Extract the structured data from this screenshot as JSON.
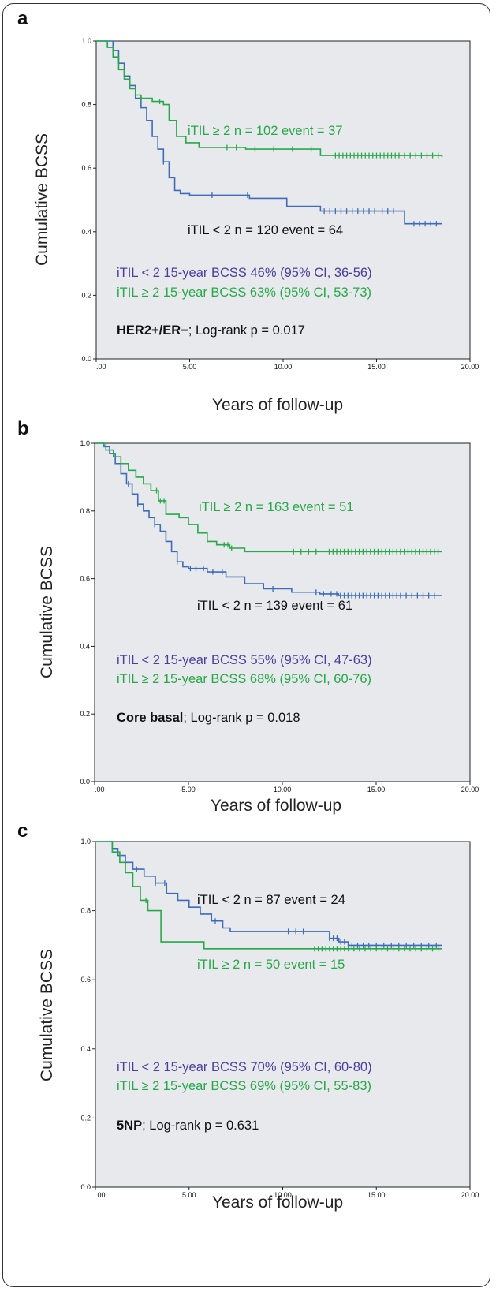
{
  "colors": {
    "green": "#27a84a",
    "blue": "#3d6db8",
    "purple": "#4a3f9e",
    "black": "#111111",
    "plot_bg": "#e8e9ec"
  },
  "chart_data": [
    {
      "type": "line",
      "panel_label": "a",
      "xlabel": "Years of follow-up",
      "ylabel": "Cumulative BCSS",
      "xlim": [
        0,
        20
      ],
      "ylim": [
        0,
        1
      ],
      "xticks": [
        ".00",
        "5.00",
        "10.00",
        "15.00",
        "20.00"
      ],
      "yticks": [
        "0.0",
        "0.2",
        "0.4",
        "0.6",
        "0.8",
        "1.0"
      ],
      "annotations": {
        "green_curve": "iTIL ≥ 2  n = 102 event = 37",
        "blue_curve": "iTIL < 2  n = 120 event = 64",
        "bcss_low": "iTIL < 2  15-year BCSS 46% (95% CI, 36-56)",
        "bcss_high": "iTIL ≥ 2  15-year BCSS 63% (95% CI, 53-73)",
        "subtype": "HER2+/ER−",
        "logrank": "; Log-rank p = 0.017"
      },
      "series": [
        {
          "name": "iTIL < 2",
          "color": "#3d6db8",
          "x": [
            0,
            0.6,
            0.9,
            1.2,
            1.5,
            1.8,
            2.1,
            2.4,
            2.7,
            3.0,
            3.3,
            3.6,
            3.9,
            4.2,
            4.5,
            5.0,
            6.0,
            8.2,
            10.2,
            12.0,
            14.5,
            16.5,
            18.5
          ],
          "y": [
            1.0,
            1.0,
            0.97,
            0.93,
            0.89,
            0.86,
            0.82,
            0.79,
            0.75,
            0.7,
            0.66,
            0.62,
            0.57,
            0.53,
            0.52,
            0.515,
            0.515,
            0.505,
            0.48,
            0.465,
            0.465,
            0.425,
            0.425
          ],
          "censor_x": [
            3.6,
            6.2,
            8.1,
            12.2,
            12.5,
            12.8,
            13.1,
            13.4,
            13.7,
            14.0,
            14.3,
            14.6,
            14.9,
            15.3,
            15.6,
            15.9,
            17.0,
            17.3,
            17.6,
            17.9,
            18.2
          ]
        },
        {
          "name": "iTIL ≥ 2",
          "color": "#27a84a",
          "x": [
            0,
            0.6,
            0.9,
            1.2,
            1.5,
            1.8,
            2.1,
            2.4,
            3.0,
            3.6,
            3.9,
            4.3,
            4.8,
            5.5,
            8.0,
            12.0,
            18.5
          ],
          "y": [
            1.0,
            0.98,
            0.95,
            0.91,
            0.88,
            0.85,
            0.83,
            0.82,
            0.81,
            0.8,
            0.75,
            0.7,
            0.68,
            0.665,
            0.66,
            0.64,
            0.635
          ],
          "censor_x": [
            2.4,
            3.4,
            7.0,
            7.5,
            8.5,
            9.5,
            10.5,
            11.5,
            12.8,
            13.0,
            13.2,
            13.4,
            13.6,
            13.8,
            14.0,
            14.2,
            14.4,
            14.6,
            14.8,
            15.0,
            15.2,
            15.4,
            15.6,
            15.8,
            16.0,
            16.2,
            16.5,
            16.8,
            17.1,
            17.4,
            17.7,
            18.0,
            18.3
          ]
        }
      ]
    },
    {
      "type": "line",
      "panel_label": "b",
      "xlabel": "Years of follow-up",
      "ylabel": "Cumulative BCSS",
      "xlim": [
        0,
        20
      ],
      "ylim": [
        0,
        1
      ],
      "xticks": [
        ".00",
        "5.00",
        "10.00",
        "15.00",
        "20.00"
      ],
      "yticks": [
        "0.0",
        "0.2",
        "0.4",
        "0.6",
        "0.8",
        "1.0"
      ],
      "annotations": {
        "green_curve": "iTIL ≥ 2  n = 163 event = 51",
        "blue_curve": "iTIL < 2  n = 139 event = 61",
        "bcss_low": "iTIL < 2  15-year BCSS 55% (95% CI, 47-63)",
        "bcss_high": "iTIL ≥ 2  15-year BCSS 68% (95% CI, 60-76)",
        "subtype": "Core basal",
        "logrank": "; Log-rank p = 0.018"
      },
      "series": [
        {
          "name": "iTIL < 2",
          "color": "#3d6db8",
          "x": [
            0,
            0.5,
            0.8,
            1.1,
            1.4,
            1.7,
            2.0,
            2.3,
            2.6,
            2.9,
            3.2,
            3.5,
            3.8,
            4.1,
            4.4,
            4.7,
            5.0,
            6.0,
            7.0,
            8.0,
            9.0,
            10.5,
            12.0,
            13.0,
            18.5
          ],
          "y": [
            1.0,
            0.99,
            0.97,
            0.94,
            0.91,
            0.88,
            0.85,
            0.82,
            0.8,
            0.78,
            0.76,
            0.74,
            0.71,
            0.68,
            0.65,
            0.635,
            0.63,
            0.62,
            0.605,
            0.585,
            0.57,
            0.56,
            0.555,
            0.55,
            0.55
          ],
          "censor_x": [
            1.8,
            2.3,
            3.2,
            4.4,
            5.1,
            5.4,
            5.8,
            6.3,
            6.8,
            9.5,
            11.8,
            12.2,
            12.6,
            12.9,
            13.1,
            13.3,
            13.5,
            13.7,
            13.9,
            14.1,
            14.3,
            14.5,
            14.7,
            14.9,
            15.1,
            15.3,
            15.5,
            15.7,
            15.9,
            16.1,
            16.3,
            16.6,
            16.9,
            17.2,
            17.5,
            17.8,
            18.1
          ]
        },
        {
          "name": "iTIL ≥ 2",
          "color": "#27a84a",
          "x": [
            0,
            0.6,
            1.0,
            1.4,
            1.8,
            2.2,
            2.6,
            3.0,
            3.4,
            3.8,
            4.5,
            5.0,
            5.5,
            6.0,
            6.5,
            7.2,
            8.0,
            18.5
          ],
          "y": [
            1.0,
            0.98,
            0.96,
            0.94,
            0.92,
            0.9,
            0.88,
            0.86,
            0.83,
            0.79,
            0.78,
            0.76,
            0.735,
            0.71,
            0.7,
            0.69,
            0.68,
            0.68
          ],
          "censor_x": [
            3.3,
            3.5,
            3.7,
            6.9,
            7.1,
            7.3,
            10.6,
            11.0,
            11.4,
            11.8,
            12.5,
            12.7,
            12.9,
            13.1,
            13.3,
            13.5,
            13.7,
            13.9,
            14.1,
            14.3,
            14.5,
            14.7,
            14.9,
            15.1,
            15.3,
            15.5,
            15.7,
            15.9,
            16.1,
            16.3,
            16.5,
            16.7,
            16.9,
            17.1,
            17.3,
            17.5,
            17.7,
            17.9,
            18.1,
            18.3
          ]
        }
      ]
    },
    {
      "type": "line",
      "panel_label": "c",
      "xlabel": "Years of follow-up",
      "ylabel": "Cumulative BCSS",
      "xlim": [
        0,
        20
      ],
      "ylim": [
        0,
        1
      ],
      "xticks": [
        ".00",
        "5.00",
        "10.00",
        "15.00",
        "20.00"
      ],
      "yticks": [
        "0.0",
        "0.2",
        "0.4",
        "0.6",
        "0.8",
        "1.0"
      ],
      "annotations": {
        "blue_curve": "iTIL < 2  n = 87 event = 24",
        "green_curve": "iTIL ≥ 2  n = 50 event = 15",
        "bcss_low": "iTIL < 2  15-year BCSS 70% (95% CI, 60-80)",
        "bcss_high": "iTIL ≥ 2  15-year BCSS 69% (95% CI, 55-83)",
        "subtype": "5NP",
        "logrank": "; Log-rank p = 0.631"
      },
      "series": [
        {
          "name": "iTIL < 2",
          "color": "#3d6db8",
          "x": [
            0,
            0.9,
            1.2,
            1.6,
            2.0,
            2.6,
            3.2,
            3.8,
            4.4,
            5.0,
            5.6,
            6.2,
            6.8,
            7.2,
            10.0,
            12.5,
            13.0,
            13.5,
            18.5
          ],
          "y": [
            1.0,
            0.98,
            0.96,
            0.94,
            0.92,
            0.9,
            0.88,
            0.85,
            0.83,
            0.81,
            0.79,
            0.77,
            0.75,
            0.74,
            0.74,
            0.72,
            0.71,
            0.7,
            0.7
          ],
          "censor_x": [
            1.6,
            2.2,
            3.2,
            3.7,
            6.4,
            10.3,
            10.7,
            11.1,
            12.5,
            12.7,
            12.9,
            13.1,
            13.3,
            13.5,
            13.7,
            14.0,
            14.3,
            14.6,
            15.0,
            15.4,
            15.8,
            16.2,
            16.6,
            17.0,
            17.4,
            17.8,
            18.2
          ]
        },
        {
          "name": "iTIL ≥ 2",
          "color": "#27a84a",
          "x": [
            0,
            0.9,
            1.3,
            1.6,
            2.0,
            2.4,
            2.8,
            3.5,
            5.8,
            18.5
          ],
          "y": [
            1.0,
            0.97,
            0.94,
            0.91,
            0.87,
            0.83,
            0.8,
            0.71,
            0.69,
            0.69
          ],
          "censor_x": [
            2.7,
            11.7,
            11.9,
            12.1,
            12.3,
            12.5,
            12.7,
            12.9,
            13.1,
            13.3,
            13.5,
            13.8,
            14.1,
            14.4,
            14.7,
            15.0,
            15.3,
            15.6,
            15.9,
            16.2,
            16.5,
            16.8,
            17.1,
            17.4,
            17.7,
            18.0,
            18.3
          ]
        }
      ]
    }
  ]
}
